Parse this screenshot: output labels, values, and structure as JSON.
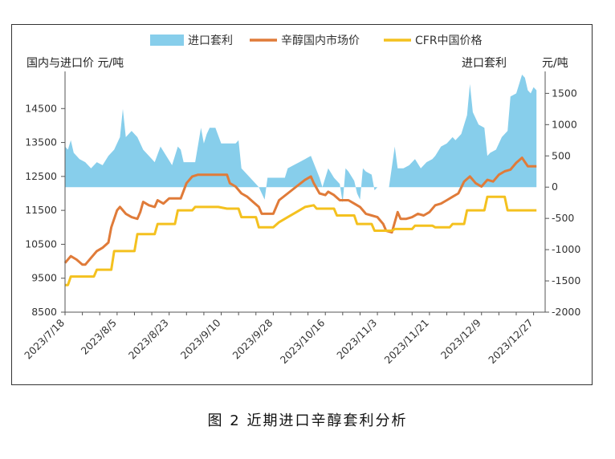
{
  "caption": "图 2 近期进口辛醇套利分析",
  "chart_data": {
    "type": "line",
    "left_axis_label": "国内与进口价  元/吨",
    "right_axis_label_name": "进口套利",
    "right_axis_label_unit": "元/吨",
    "y_left": {
      "min": 8500,
      "max": 15500,
      "ticks": [
        8500,
        9500,
        10500,
        11500,
        12500,
        13500,
        14500
      ]
    },
    "y_right": {
      "min": -2000,
      "max": 1800,
      "ticks": [
        -2000,
        -1500,
        -1000,
        -500,
        0,
        500,
        1000,
        1500
      ]
    },
    "x_range": [
      "2023-07-18",
      "2023-12-31"
    ],
    "x_ticks": [
      "2023/7/18",
      "2023/8/5",
      "2023/8/23",
      "2023/9/10",
      "2023/9/28",
      "2023/10/16",
      "2023/11/3",
      "2023/11/21",
      "2023/12/9",
      "2023/12/27"
    ],
    "legend": [
      "进口套利",
      "辛醇国内市场价",
      "CFR中国价格"
    ],
    "colors": {
      "arbitrage": "#87CEEB",
      "domestic": "#E07B39",
      "cfr": "#F4C11F"
    },
    "series": [
      {
        "name": "进口套利",
        "type": "area",
        "axis": "right",
        "points": [
          [
            "2023-07-18",
            650
          ],
          [
            "2023-07-19",
            600
          ],
          [
            "2023-07-20",
            750
          ],
          [
            "2023-07-21",
            550
          ],
          [
            "2023-07-23",
            450
          ],
          [
            "2023-07-25",
            400
          ],
          [
            "2023-07-27",
            300
          ],
          [
            "2023-07-29",
            400
          ],
          [
            "2023-07-31",
            350
          ],
          [
            "2023-08-02",
            500
          ],
          [
            "2023-08-04",
            600
          ],
          [
            "2023-08-06",
            800
          ],
          [
            "2023-08-07",
            1250
          ],
          [
            "2023-08-08",
            800
          ],
          [
            "2023-08-10",
            900
          ],
          [
            "2023-08-12",
            800
          ],
          [
            "2023-08-14",
            600
          ],
          [
            "2023-08-16",
            500
          ],
          [
            "2023-08-18",
            400
          ],
          [
            "2023-08-20",
            650
          ],
          [
            "2023-08-22",
            500
          ],
          [
            "2023-08-24",
            350
          ],
          [
            "2023-08-26",
            650
          ],
          [
            "2023-08-27",
            600
          ],
          [
            "2023-08-28",
            400
          ],
          [
            "2023-08-30",
            400
          ],
          [
            "2023-09-01",
            400
          ],
          [
            "2023-09-03",
            950
          ],
          [
            "2023-09-04",
            700
          ],
          [
            "2023-09-05",
            850
          ],
          [
            "2023-09-06",
            950
          ],
          [
            "2023-09-08",
            950
          ],
          [
            "2023-09-10",
            700
          ],
          [
            "2023-09-12",
            700
          ],
          [
            "2023-09-15",
            700
          ],
          [
            "2023-09-16",
            750
          ],
          [
            "2023-09-17",
            300
          ],
          [
            "2023-09-19",
            200
          ],
          [
            "2023-09-21",
            100
          ],
          [
            "2023-09-23",
            0
          ],
          [
            "2023-09-25",
            -200
          ],
          [
            "2023-09-26",
            150
          ],
          [
            "2023-09-28",
            150
          ],
          [
            "2023-09-30",
            150
          ],
          [
            "2023-10-02",
            150
          ],
          [
            "2023-10-03",
            300
          ],
          [
            "2023-10-05",
            350
          ],
          [
            "2023-10-07",
            400
          ],
          [
            "2023-10-09",
            450
          ],
          [
            "2023-10-11",
            500
          ],
          [
            "2023-10-14",
            150
          ],
          [
            "2023-10-15",
            0
          ],
          [
            "2023-10-17",
            300
          ],
          [
            "2023-10-19",
            150
          ],
          [
            "2023-10-21",
            50
          ],
          [
            "2023-10-22",
            -250
          ],
          [
            "2023-10-23",
            300
          ],
          [
            "2023-10-24",
            250
          ],
          [
            "2023-10-26",
            100
          ],
          [
            "2023-10-27",
            -100
          ],
          [
            "2023-10-28",
            -200
          ],
          [
            "2023-10-29",
            300
          ],
          [
            "2023-10-30",
            250
          ],
          [
            "2023-11-01",
            200
          ],
          [
            "2023-11-02",
            -50
          ],
          [
            "2023-11-03",
            0
          ],
          [
            "2023-11-05",
            0
          ],
          [
            "2023-11-07",
            0
          ],
          [
            "2023-11-09",
            650
          ],
          [
            "2023-11-10",
            300
          ],
          [
            "2023-11-12",
            300
          ],
          [
            "2023-11-14",
            350
          ],
          [
            "2023-11-16",
            450
          ],
          [
            "2023-11-18",
            300
          ],
          [
            "2023-11-20",
            400
          ],
          [
            "2023-11-22",
            450
          ],
          [
            "2023-11-23",
            500
          ],
          [
            "2023-11-25",
            650
          ],
          [
            "2023-11-27",
            700
          ],
          [
            "2023-11-29",
            800
          ],
          [
            "2023-11-30",
            750
          ],
          [
            "2023-12-02",
            850
          ],
          [
            "2023-12-04",
            1150
          ],
          [
            "2023-12-05",
            1650
          ],
          [
            "2023-12-06",
            1200
          ],
          [
            "2023-12-08",
            1000
          ],
          [
            "2023-12-10",
            950
          ],
          [
            "2023-12-11",
            500
          ],
          [
            "2023-12-12",
            550
          ],
          [
            "2023-12-14",
            600
          ],
          [
            "2023-12-16",
            800
          ],
          [
            "2023-12-18",
            900
          ],
          [
            "2023-12-19",
            1450
          ],
          [
            "2023-12-21",
            1500
          ],
          [
            "2023-12-22",
            1650
          ],
          [
            "2023-12-23",
            1800
          ],
          [
            "2023-12-24",
            1750
          ],
          [
            "2023-12-25",
            1550
          ],
          [
            "2023-12-26",
            1500
          ],
          [
            "2023-12-27",
            1600
          ],
          [
            "2023-12-28",
            1550
          ]
        ]
      },
      {
        "name": "辛醇国内市场价",
        "type": "line",
        "axis": "left",
        "points": [
          [
            "2023-07-18",
            9950
          ],
          [
            "2023-07-20",
            10150
          ],
          [
            "2023-07-22",
            10050
          ],
          [
            "2023-07-24",
            9900
          ],
          [
            "2023-07-25",
            9900
          ],
          [
            "2023-07-27",
            10100
          ],
          [
            "2023-07-29",
            10300
          ],
          [
            "2023-07-31",
            10400
          ],
          [
            "2023-08-02",
            10550
          ],
          [
            "2023-08-03",
            11000
          ],
          [
            "2023-08-05",
            11500
          ],
          [
            "2023-08-06",
            11600
          ],
          [
            "2023-08-08",
            11400
          ],
          [
            "2023-08-10",
            11300
          ],
          [
            "2023-08-12",
            11250
          ],
          [
            "2023-08-13",
            11450
          ],
          [
            "2023-08-14",
            11750
          ],
          [
            "2023-08-16",
            11650
          ],
          [
            "2023-08-18",
            11600
          ],
          [
            "2023-08-19",
            11800
          ],
          [
            "2023-08-21",
            11700
          ],
          [
            "2023-08-23",
            11850
          ],
          [
            "2023-08-25",
            11850
          ],
          [
            "2023-08-27",
            11850
          ],
          [
            "2023-08-29",
            12300
          ],
          [
            "2023-08-31",
            12500
          ],
          [
            "2023-09-02",
            12550
          ],
          [
            "2023-09-05",
            12550
          ],
          [
            "2023-09-08",
            12550
          ],
          [
            "2023-09-12",
            12550
          ],
          [
            "2023-09-13",
            12300
          ],
          [
            "2023-09-15",
            12200
          ],
          [
            "2023-09-17",
            12000
          ],
          [
            "2023-09-19",
            11900
          ],
          [
            "2023-09-21",
            11750
          ],
          [
            "2023-09-23",
            11600
          ],
          [
            "2023-09-24",
            11400
          ],
          [
            "2023-09-26",
            11400
          ],
          [
            "2023-09-28",
            11400
          ],
          [
            "2023-09-30",
            11800
          ],
          [
            "2023-10-03",
            12000
          ],
          [
            "2023-10-06",
            12200
          ],
          [
            "2023-10-09",
            12400
          ],
          [
            "2023-10-11",
            12500
          ],
          [
            "2023-10-12",
            12300
          ],
          [
            "2023-10-14",
            12000
          ],
          [
            "2023-10-16",
            11950
          ],
          [
            "2023-10-17",
            12050
          ],
          [
            "2023-10-19",
            11950
          ],
          [
            "2023-10-21",
            11800
          ],
          [
            "2023-10-24",
            11800
          ],
          [
            "2023-10-26",
            11700
          ],
          [
            "2023-10-28",
            11600
          ],
          [
            "2023-10-30",
            11400
          ],
          [
            "2023-11-01",
            11350
          ],
          [
            "2023-11-03",
            11300
          ],
          [
            "2023-11-05",
            11100
          ],
          [
            "2023-11-06",
            10900
          ],
          [
            "2023-11-08",
            10850
          ],
          [
            "2023-11-10",
            11450
          ],
          [
            "2023-11-11",
            11250
          ],
          [
            "2023-11-13",
            11250
          ],
          [
            "2023-11-15",
            11300
          ],
          [
            "2023-11-17",
            11400
          ],
          [
            "2023-11-19",
            11350
          ],
          [
            "2023-11-21",
            11450
          ],
          [
            "2023-11-23",
            11650
          ],
          [
            "2023-11-25",
            11700
          ],
          [
            "2023-11-27",
            11800
          ],
          [
            "2023-11-29",
            11900
          ],
          [
            "2023-12-01",
            12000
          ],
          [
            "2023-12-03",
            12350
          ],
          [
            "2023-12-05",
            12500
          ],
          [
            "2023-12-07",
            12300
          ],
          [
            "2023-12-09",
            12200
          ],
          [
            "2023-12-11",
            12400
          ],
          [
            "2023-12-13",
            12350
          ],
          [
            "2023-12-15",
            12550
          ],
          [
            "2023-12-17",
            12650
          ],
          [
            "2023-12-19",
            12700
          ],
          [
            "2023-12-21",
            12900
          ],
          [
            "2023-12-23",
            13050
          ],
          [
            "2023-12-25",
            12800
          ],
          [
            "2023-12-28",
            12800
          ]
        ]
      },
      {
        "name": "CFR中国价格",
        "type": "line",
        "axis": "left",
        "points": [
          [
            "2023-07-18",
            9300
          ],
          [
            "2023-07-19",
            9300
          ],
          [
            "2023-07-20",
            9550
          ],
          [
            "2023-07-22",
            9550
          ],
          [
            "2023-07-25",
            9550
          ],
          [
            "2023-07-28",
            9550
          ],
          [
            "2023-07-29",
            9750
          ],
          [
            "2023-07-31",
            9750
          ],
          [
            "2023-08-03",
            9750
          ],
          [
            "2023-08-04",
            10300
          ],
          [
            "2023-08-06",
            10300
          ],
          [
            "2023-08-08",
            10300
          ],
          [
            "2023-08-11",
            10300
          ],
          [
            "2023-08-12",
            10800
          ],
          [
            "2023-08-15",
            10800
          ],
          [
            "2023-08-18",
            10800
          ],
          [
            "2023-08-19",
            11100
          ],
          [
            "2023-08-22",
            11100
          ],
          [
            "2023-08-25",
            11100
          ],
          [
            "2023-08-26",
            11500
          ],
          [
            "2023-08-29",
            11500
          ],
          [
            "2023-08-31",
            11500
          ],
          [
            "2023-09-01",
            11600
          ],
          [
            "2023-09-05",
            11600
          ],
          [
            "2023-09-09",
            11600
          ],
          [
            "2023-09-12",
            11550
          ],
          [
            "2023-09-14",
            11550
          ],
          [
            "2023-09-16",
            11550
          ],
          [
            "2023-09-17",
            11300
          ],
          [
            "2023-09-20",
            11300
          ],
          [
            "2023-09-22",
            11300
          ],
          [
            "2023-09-23",
            11000
          ],
          [
            "2023-09-26",
            11000
          ],
          [
            "2023-09-28",
            11000
          ],
          [
            "2023-09-30",
            11150
          ],
          [
            "2023-10-03",
            11300
          ],
          [
            "2023-10-06",
            11450
          ],
          [
            "2023-10-09",
            11600
          ],
          [
            "2023-10-12",
            11650
          ],
          [
            "2023-10-13",
            11550
          ],
          [
            "2023-10-16",
            11550
          ],
          [
            "2023-10-19",
            11550
          ],
          [
            "2023-10-20",
            11350
          ],
          [
            "2023-10-23",
            11350
          ],
          [
            "2023-10-26",
            11350
          ],
          [
            "2023-10-27",
            11100
          ],
          [
            "2023-10-30",
            11100
          ],
          [
            "2023-11-01",
            11100
          ],
          [
            "2023-11-02",
            10900
          ],
          [
            "2023-11-05",
            10900
          ],
          [
            "2023-11-08",
            10900
          ],
          [
            "2023-11-09",
            10950
          ],
          [
            "2023-11-12",
            10950
          ],
          [
            "2023-11-15",
            10950
          ],
          [
            "2023-11-16",
            11050
          ],
          [
            "2023-11-19",
            11050
          ],
          [
            "2023-11-22",
            11050
          ],
          [
            "2023-11-23",
            11000
          ],
          [
            "2023-11-26",
            11000
          ],
          [
            "2023-11-28",
            11000
          ],
          [
            "2023-11-29",
            11100
          ],
          [
            "2023-12-01",
            11100
          ],
          [
            "2023-12-03",
            11100
          ],
          [
            "2023-12-04",
            11500
          ],
          [
            "2023-12-07",
            11500
          ],
          [
            "2023-12-10",
            11500
          ],
          [
            "2023-12-11",
            11900
          ],
          [
            "2023-12-14",
            11900
          ],
          [
            "2023-12-17",
            11900
          ],
          [
            "2023-12-18",
            11500
          ],
          [
            "2023-12-21",
            11500
          ],
          [
            "2023-12-24",
            11500
          ],
          [
            "2023-12-28",
            11500
          ]
        ]
      }
    ]
  }
}
